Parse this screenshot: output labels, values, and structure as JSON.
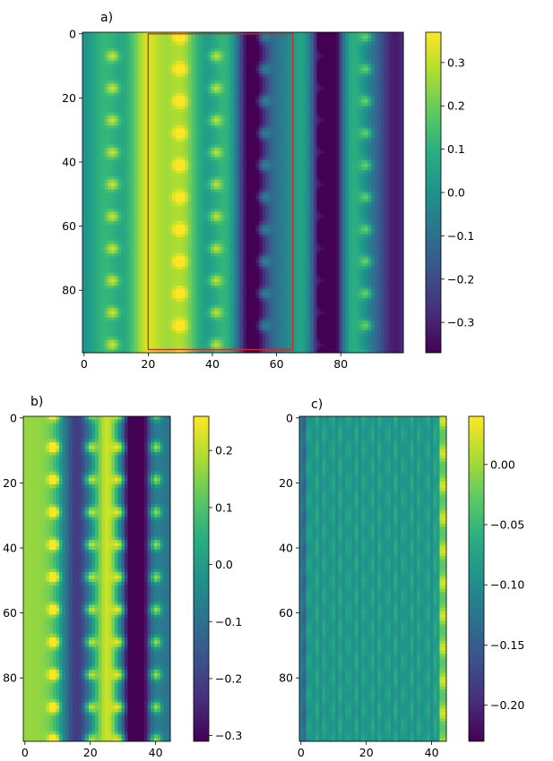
{
  "chart_data": [
    {
      "type": "heatmap",
      "panel_label": "a)",
      "xlim": [
        0,
        99
      ],
      "ylim": [
        99,
        0
      ],
      "x_ticks": [
        "0",
        "20",
        "40",
        "60",
        "80"
      ],
      "y_ticks": [
        "0",
        "20",
        "40",
        "60",
        "80"
      ],
      "colorbar": {
        "range": [
          -0.37,
          0.37
        ],
        "ticks": [
          "0.3",
          "0.2",
          "0.1",
          "0.0",
          "−0.1",
          "−0.2",
          "−0.3"
        ],
        "values": [
          0.3,
          0.2,
          0.1,
          0.0,
          -0.1,
          -0.2,
          -0.3
        ]
      },
      "highlight_box": {
        "x_range": [
          20,
          65
        ],
        "y_range": [
          0,
          99
        ],
        "color": "#d62728"
      }
    },
    {
      "type": "heatmap",
      "panel_label": "b)",
      "xlim": [
        0,
        44
      ],
      "ylim": [
        99,
        0
      ],
      "x_ticks": [
        "0",
        "20",
        "40"
      ],
      "y_ticks": [
        "0",
        "20",
        "40",
        "60",
        "80"
      ],
      "colorbar": {
        "range": [
          -0.31,
          0.26
        ],
        "ticks": [
          "0.2",
          "0.1",
          "0.0",
          "−0.1",
          "−0.2",
          "−0.3"
        ],
        "values": [
          0.2,
          0.1,
          0.0,
          -0.1,
          -0.2,
          -0.3
        ]
      }
    },
    {
      "type": "heatmap",
      "panel_label": "c)",
      "xlim": [
        0,
        44
      ],
      "ylim": [
        99,
        0
      ],
      "x_ticks": [
        "0",
        "20",
        "40"
      ],
      "y_ticks": [
        "0",
        "20",
        "40",
        "60",
        "80"
      ],
      "colorbar": {
        "range": [
          -0.23,
          0.04
        ],
        "ticks": [
          "0.00",
          "−0.05",
          "−0.10",
          "−0.15",
          "−0.20"
        ],
        "values": [
          0.0,
          -0.05,
          -0.1,
          -0.15,
          -0.2
        ]
      }
    }
  ]
}
